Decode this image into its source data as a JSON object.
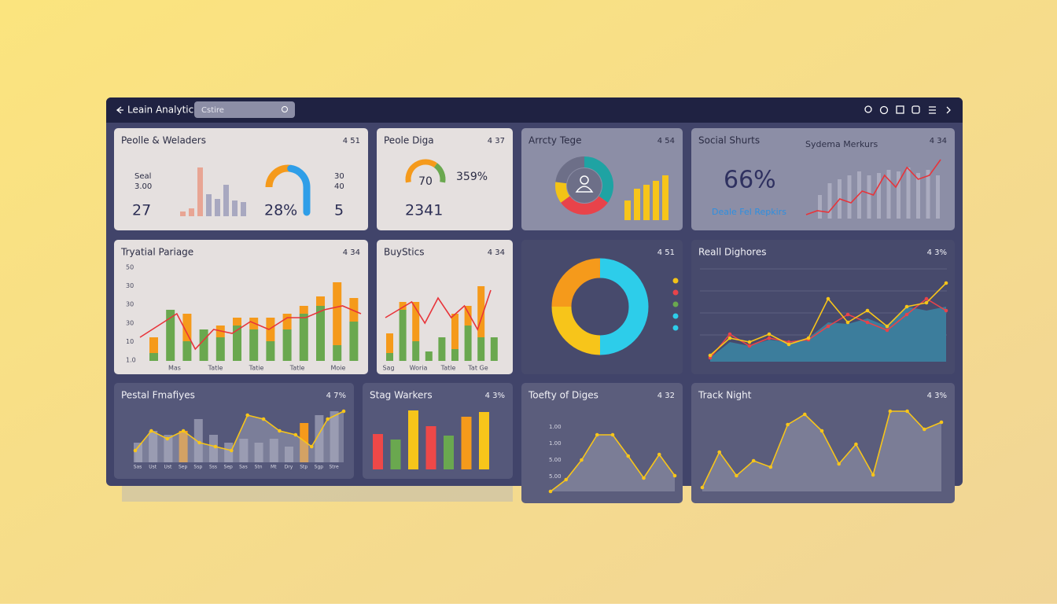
{
  "header": {
    "title": "Leain Analytic:",
    "search": "Cstire"
  },
  "cards": [
    {
      "title": "Peolle & Weladers",
      "badge": "4 51",
      "left_labels": [
        "Seal",
        "3.00"
      ],
      "right_labels": [
        "30",
        "40"
      ],
      "stats": [
        "27",
        "28%",
        "5"
      ],
      "bars": [
        6,
        10,
        62,
        28,
        22,
        40,
        20,
        18
      ],
      "bar_colors": [
        "#e8a594",
        "#e8a594",
        "#e8a594",
        "#a8a8c0",
        "#a8a8c0",
        "#a8a8c0",
        "#a8a8c0",
        "#a8a8c0"
      ],
      "gauge": 55
    },
    {
      "title": "Peole Diga",
      "badge": "4 37",
      "gauge": 70,
      "stat": "359%",
      "big": "2341"
    },
    {
      "title": "Arrcty Tege",
      "badge": "4 54",
      "donut": [
        35,
        30,
        12,
        23
      ],
      "donut_colors": [
        "#1fa3a3",
        "#e8434a",
        "#f3c316",
        "#6d6f88"
      ],
      "bars": [
        25,
        40,
        45,
        50,
        57
      ]
    },
    {
      "title": "Social Shurts",
      "badge": "4 34",
      "big": "66%",
      "subtitle": "Sydema Merkurs",
      "caption": "Deale Fel Repkirs",
      "bars": [
        30,
        45,
        50,
        55,
        60,
        55,
        58,
        62,
        60,
        65,
        58,
        62,
        55
      ],
      "line": [
        5,
        10,
        8,
        25,
        20,
        35,
        30,
        55,
        40,
        65,
        50,
        55,
        75
      ]
    },
    {
      "title": "Tryatial Pariage",
      "badge": "4 34",
      "yticks": [
        "50",
        "30",
        "30",
        "30",
        "10",
        "1.0"
      ],
      "xlabels": [
        "Mas",
        "Tatle",
        "Tatie",
        "Tatle",
        "Moie"
      ],
      "green": [
        10,
        65,
        25,
        40,
        30,
        45,
        40,
        25,
        40,
        60,
        70,
        20,
        50
      ],
      "orange": [
        20,
        0,
        35,
        0,
        15,
        10,
        15,
        30,
        20,
        10,
        12,
        80,
        30
      ],
      "line": [
        30,
        45,
        60,
        15,
        40,
        35,
        50,
        40,
        55,
        55,
        65,
        70,
        60
      ]
    },
    {
      "title": "BuyStics",
      "badge": "4 34",
      "xlabels": [
        "Sag",
        "Woria",
        "Tatle",
        "Tat Ge"
      ],
      "green": [
        10,
        65,
        25,
        12,
        30,
        15,
        45,
        30,
        30
      ],
      "orange": [
        25,
        10,
        50,
        0,
        0,
        45,
        25,
        65,
        0
      ],
      "line": [
        55,
        65,
        75,
        48,
        80,
        55,
        70,
        40,
        90
      ]
    },
    {
      "badge": "4 51",
      "donut": [
        50,
        25,
        25
      ],
      "donut_colors": [
        "#2dcdea",
        "#f7c51a",
        "#f59a1b"
      ],
      "legend_colors": [
        "#f3c316",
        "#e8434a",
        "#6aa84f",
        "#2dcdea",
        "#2dcdea"
      ]
    },
    {
      "title": "Reall Dighores",
      "badge": "4 3%",
      "area": [
        5,
        25,
        20,
        28,
        25,
        30,
        50,
        48,
        55,
        45,
        70,
        65,
        70
      ],
      "red": [
        5,
        35,
        20,
        30,
        25,
        28,
        45,
        60,
        50,
        40,
        60,
        80,
        65
      ],
      "yellow": [
        8,
        30,
        25,
        35,
        22,
        30,
        80,
        50,
        65,
        45,
        70,
        75,
        100
      ]
    },
    {
      "title": "Pestal Fmafiyes",
      "badge": "4 7%",
      "bars": [
        25,
        40,
        35,
        40,
        55,
        35,
        25,
        30,
        25,
        30,
        20,
        50,
        60,
        65
      ],
      "bar_colors": [
        "#8d8fa8",
        "#8d8fa8",
        "#8d8fa8",
        "#f59a1b",
        "#8d8fa8",
        "#8d8fa8",
        "#8d8fa8",
        "#8d8fa8",
        "#8d8fa8",
        "#8d8fa8",
        "#8d8fa8",
        "#f59a1b",
        "#8d8fa8",
        "#8d8fa8"
      ],
      "line": [
        15,
        40,
        30,
        40,
        25,
        20,
        15,
        60,
        55,
        40,
        35,
        20,
        55,
        65
      ],
      "xlabels": [
        "Sas",
        "Ust",
        "Ust",
        "Sep",
        "Ssp",
        "Sss",
        "Sep",
        "Sas",
        "Stn",
        "Mt",
        "Dry",
        "Stp",
        "Sgp",
        "Stre"
      ]
    },
    {
      "title": "Stag Warkers",
      "badge": "4 3%",
      "bars": [
        45,
        38,
        75,
        55,
        43,
        67,
        73
      ],
      "bar_colors": [
        "#ee4848",
        "#6aa84f",
        "#f7c51a",
        "#ee4848",
        "#6aa84f",
        "#f59a1b",
        "#f7c51a"
      ]
    },
    {
      "title": "Toefty of Diges",
      "badge": "4 32",
      "yticks": [
        "1.00",
        "1.00",
        "5.00",
        "5.00"
      ],
      "line": [
        0,
        15,
        40,
        72,
        72,
        45,
        17,
        47,
        20
      ]
    },
    {
      "title": "Track Night",
      "badge": "4 3%",
      "line": [
        5,
        50,
        20,
        39,
        31,
        85,
        98,
        77,
        35,
        60,
        21,
        102,
        102,
        79,
        88
      ]
    }
  ]
}
